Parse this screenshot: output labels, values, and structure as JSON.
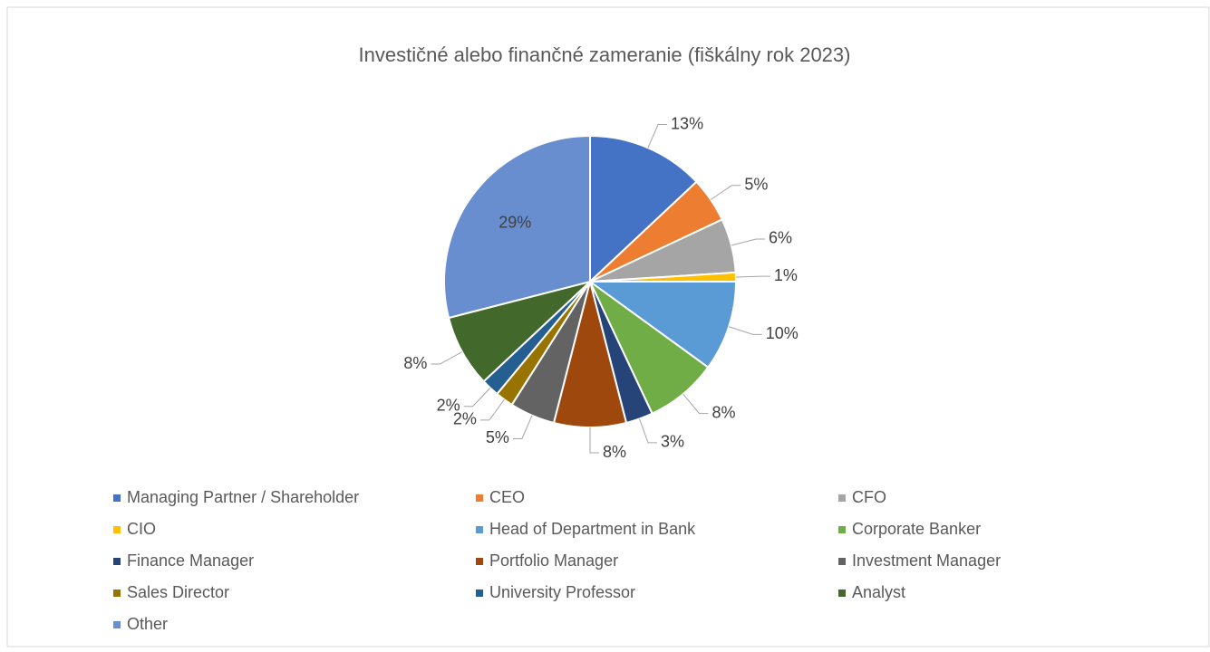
{
  "chart_data": {
    "type": "pie",
    "title": "Investičné alebo finančné zameranie (fiškálny rok 2023)",
    "categories": [
      "Managing Partner / Shareholder",
      "CEO",
      "CFO",
      "CIO",
      "Head of Department in Bank",
      "Corporate Banker",
      "Finance Manager",
      "Portfolio Manager",
      "Investment Manager",
      "Sales Director",
      "University Professor",
      "Analyst",
      "Other"
    ],
    "values": [
      13,
      5,
      6,
      1,
      10,
      8,
      3,
      8,
      5,
      2,
      2,
      8,
      29
    ],
    "value_labels": [
      "13%",
      "5%",
      "6%",
      "1%",
      "10%",
      "8%",
      "3%",
      "8%",
      "5%",
      "2%",
      "2%",
      "8%",
      "29%"
    ],
    "colors": [
      "#4472c4",
      "#ed7d31",
      "#a5a5a5",
      "#ffc000",
      "#5b9bd5",
      "#70ad47",
      "#264478",
      "#9e480e",
      "#636363",
      "#997300",
      "#255e91",
      "#43682b",
      "#698ed0"
    ],
    "legend": "bottom"
  }
}
